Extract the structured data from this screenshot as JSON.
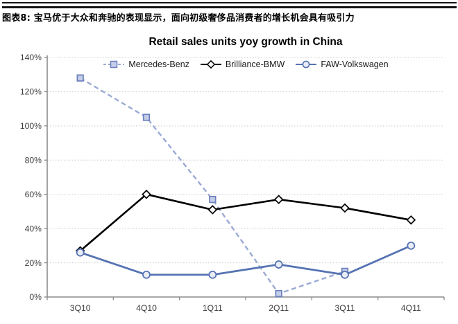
{
  "header": {
    "title": "图表8: 宝马优于大众和奔驰的表现显示，面向初级奢侈品消费者的增长机会具有吸引力"
  },
  "chart_data": {
    "type": "line",
    "title": "Retail sales units yoy growth in China",
    "categories": [
      "3Q10",
      "4Q10",
      "1Q11",
      "2Q11",
      "3Q11",
      "4Q11"
    ],
    "series": [
      {
        "name": "Mercedes-Benz",
        "values": [
          128,
          105,
          57,
          2,
          15,
          null
        ],
        "color": "#9aaad4",
        "line_style": "dashed",
        "line_width": 2.4,
        "marker": "square",
        "marker_fill": "#c5cee9",
        "marker_stroke": "#6b80bc"
      },
      {
        "name": "Brilliance-BMW",
        "values": [
          27,
          60,
          51,
          57,
          52,
          45
        ],
        "color": "#000000",
        "line_style": "solid",
        "line_width": 2.6,
        "marker": "diamond",
        "marker_fill": "#f8f8f8",
        "marker_stroke": "#000000"
      },
      {
        "name": "FAW-Volkswagen",
        "values": [
          26,
          13,
          13,
          19,
          13,
          30
        ],
        "color": "#5673b3",
        "line_style": "solid",
        "line_width": 2.8,
        "marker": "circle",
        "marker_fill": "#e9edf6",
        "marker_stroke": "#5673b3"
      }
    ],
    "ylim": [
      0,
      140
    ],
    "y_tick_step": 20,
    "y_tick_labels": [
      "0%",
      "20%",
      "40%",
      "60%",
      "80%",
      "100%",
      "120%",
      "140%"
    ],
    "grid": "horizontal-dotted",
    "legend_position": "top",
    "axis_color": "#8c8c8c",
    "grid_color": "#c9c9c9",
    "label_color": "#3d3d3d"
  }
}
